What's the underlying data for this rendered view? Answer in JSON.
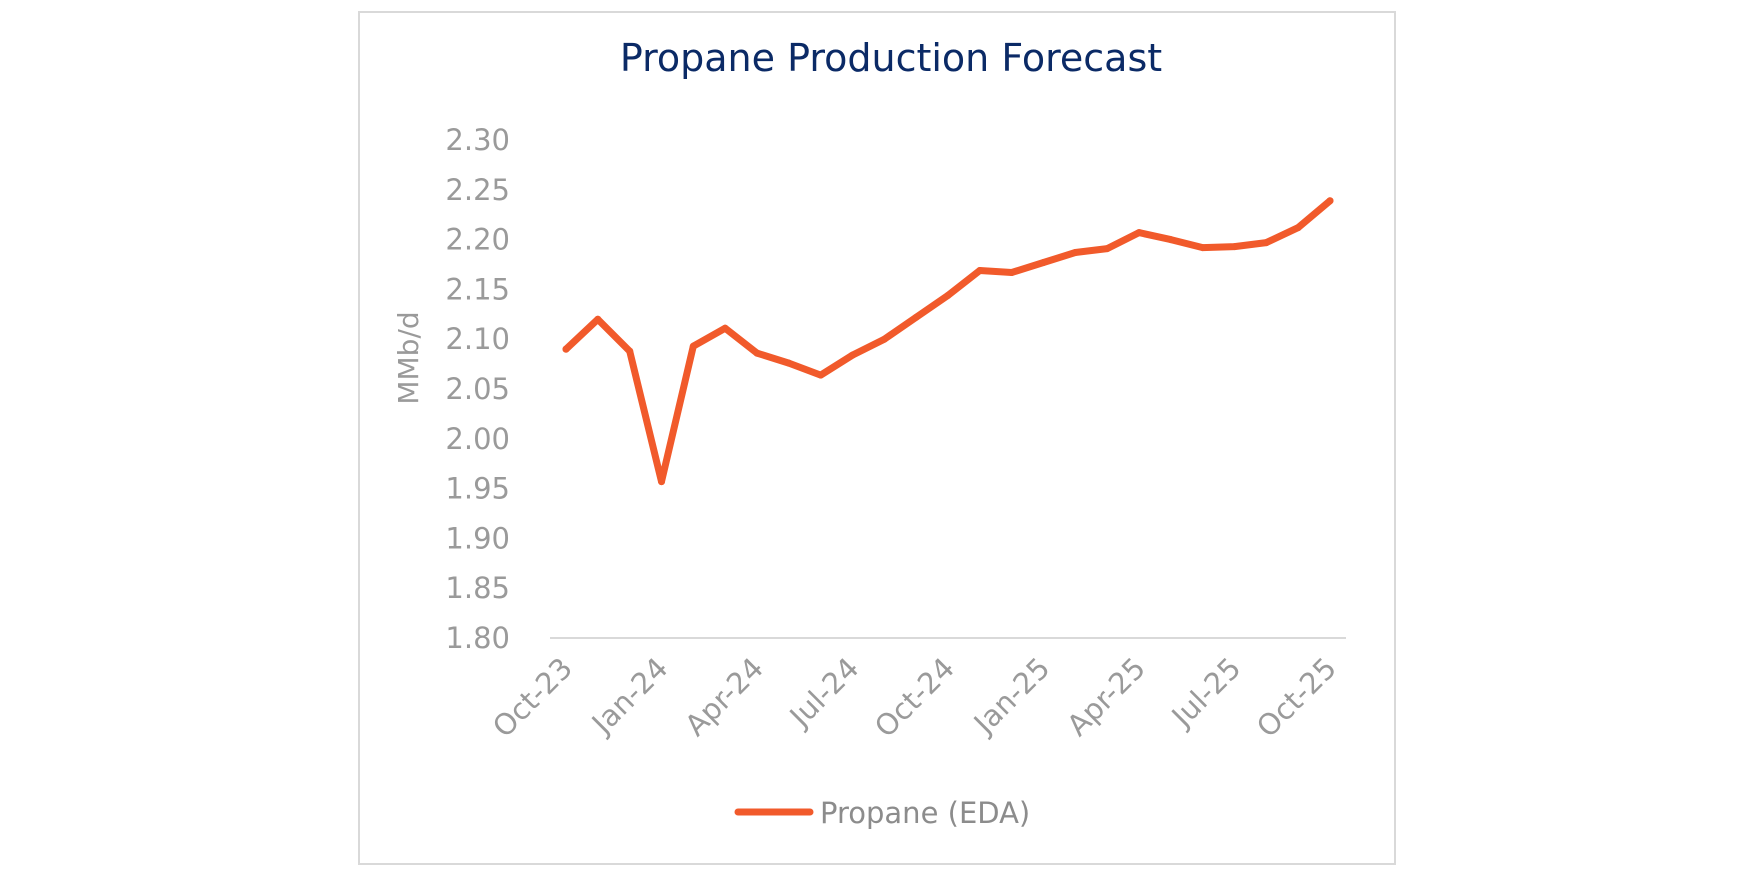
{
  "chart_data": {
    "type": "line",
    "title": "Propane Production Forecast",
    "xlabel": "",
    "ylabel": "MMb/d",
    "ylim": [
      1.8,
      2.3
    ],
    "y_ticks": [
      "1.80",
      "1.85",
      "1.90",
      "1.95",
      "2.00",
      "2.05",
      "2.10",
      "2.15",
      "2.20",
      "2.25",
      "2.30"
    ],
    "x_tick_labels": [
      "Oct-23",
      "Jan-24",
      "Apr-24",
      "Jul-24",
      "Oct-24",
      "Jan-25",
      "Apr-25",
      "Jul-25",
      "Oct-25"
    ],
    "grid": false,
    "legend_position": "bottom",
    "x": [
      "Oct-23",
      "Nov-23",
      "Dec-23",
      "Jan-24",
      "Feb-24",
      "Mar-24",
      "Apr-24",
      "May-24",
      "Jun-24",
      "Jul-24",
      "Aug-24",
      "Sep-24",
      "Oct-24",
      "Nov-24",
      "Dec-24",
      "Jan-25",
      "Feb-25",
      "Mar-25",
      "Apr-25",
      "May-25",
      "Jun-25",
      "Jul-25",
      "Aug-25",
      "Sep-25",
      "Oct-25"
    ],
    "series": [
      {
        "name": "Propane (EDA)",
        "color": "#f15a2b",
        "values": [
          2.09,
          2.12,
          2.088,
          1.957,
          2.093,
          2.111,
          2.086,
          2.076,
          2.064,
          2.084,
          2.1,
          2.122,
          2.144,
          2.169,
          2.167,
          2.177,
          2.187,
          2.191,
          2.207,
          2.2,
          2.192,
          2.193,
          2.197,
          2.212,
          2.239
        ]
      }
    ]
  }
}
